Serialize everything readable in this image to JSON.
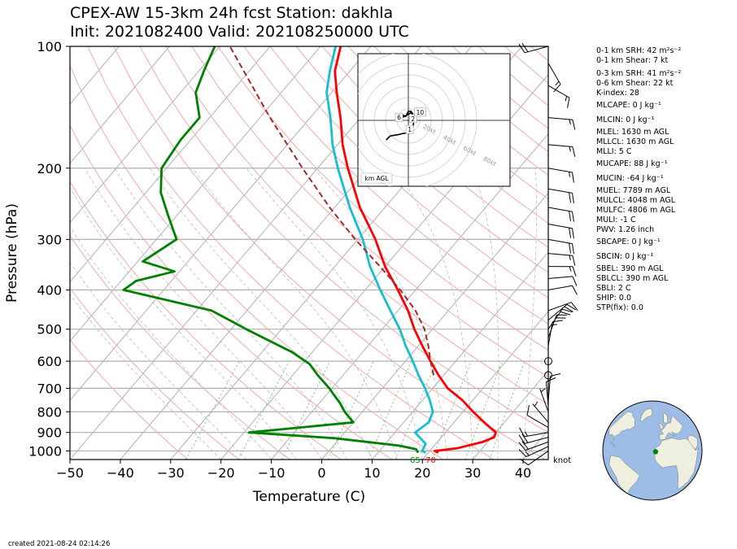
{
  "header": {
    "title_line1": "CPEX-AW 15-3km  24h fcst  Station: dakhla",
    "title_line2": "Init: 2021082400  Valid: 202108250000 UTC"
  },
  "footer": {
    "created": "created 2021-08-24 02:14:26"
  },
  "indices": [
    {
      "text": "0-1 km SRH: 42 m²s⁻²",
      "gap": 0
    },
    {
      "text": "0-1 km Shear: 7 kt",
      "gap": 0
    },
    {
      "text": "0-3 km SRH: 41 m²s⁻²",
      "gap": 4
    },
    {
      "text": "0-6 km Shear: 22 kt",
      "gap": 0
    },
    {
      "text": "K-index: 28",
      "gap": 0
    },
    {
      "text": "MLCAPE: 0 J kg⁻¹",
      "gap": 3
    },
    {
      "text": "MLCIN: 0 J kg⁻¹",
      "gap": 6
    },
    {
      "text": "MLEL: 1630 m AGL",
      "gap": 3
    },
    {
      "text": "MLLCL: 1630 m AGL",
      "gap": 0
    },
    {
      "text": "MLLI: 5 C",
      "gap": 0
    },
    {
      "text": "MUCAPE: 88 J kg⁻¹",
      "gap": 3
    },
    {
      "text": "MUCIN: -64 J kg⁻¹",
      "gap": 6
    },
    {
      "text": "MUEL: 7789 m AGL",
      "gap": 3
    },
    {
      "text": "MULCL: 4048 m AGL",
      "gap": 0
    },
    {
      "text": "MULFC: 4806 m AGL",
      "gap": 0
    },
    {
      "text": "MULI: -1 C",
      "gap": 0
    },
    {
      "text": "PWV: 1.26 inch",
      "gap": 0
    },
    {
      "text": "SBCAPE: 0 J kg⁻¹",
      "gap": 3
    },
    {
      "text": "SBCIN: 0 J kg⁻¹",
      "gap": 6
    },
    {
      "text": "SBEL: 390 m AGL",
      "gap": 3
    },
    {
      "text": "SBLCL: 390 m AGL",
      "gap": 0
    },
    {
      "text": "SBLI: 2 C",
      "gap": 0
    },
    {
      "text": "SHIP: 0.0",
      "gap": 0
    },
    {
      "text": "STP(fix): 0.0",
      "gap": 0
    }
  ],
  "colors": {
    "temperature": "#ff0000",
    "dewpoint": "#008000",
    "wetbulb": "#17becf",
    "parcel": "#a52a2a",
    "dry_adiabat": "#f4a9a9",
    "moist_adiabat": "#bbbbbb",
    "mixing_ratio": "#7fbf7f",
    "isobar": "#b0b0b0",
    "ocean": "#9dbde6",
    "land": "#efefdf",
    "station_marker": "#008000"
  },
  "chart_data": [
    {
      "type": "line",
      "subtype": "skew-t",
      "xlabel": "Temperature (C)",
      "ylabel": "Pressure (hPa)",
      "xlim": [
        -50,
        45
      ],
      "ylim": [
        1050,
        100
      ],
      "y_scale": "log",
      "x_ticks": [
        -50,
        -40,
        -30,
        -20,
        -10,
        0,
        10,
        20,
        30,
        40
      ],
      "y_ticks": [
        100,
        200,
        300,
        400,
        500,
        600,
        700,
        800,
        900,
        1000
      ],
      "grid": true,
      "surface_labels": {
        "dewpoint": "65",
        "temperature": "70"
      },
      "wind_unit_label": "knot",
      "series": [
        {
          "key": "temperature",
          "points": [
            [
              1010,
              22
            ],
            [
              1000,
              21
            ],
            [
              985,
              25
            ],
            [
              950,
              29
            ],
            [
              925,
              30.5
            ],
            [
              900,
              30
            ],
            [
              850,
              26
            ],
            [
              800,
              22
            ],
            [
              750,
              18
            ],
            [
              700,
              13
            ],
            [
              650,
              9
            ],
            [
              600,
              5
            ],
            [
              550,
              0.8
            ],
            [
              500,
              -3.6
            ],
            [
              450,
              -8
            ],
            [
              400,
              -13.5
            ],
            [
              350,
              -20
            ],
            [
              300,
              -26.5
            ],
            [
              250,
              -35
            ],
            [
              200,
              -44
            ],
            [
              175,
              -49
            ],
            [
              150,
              -54
            ],
            [
              130,
              -59
            ],
            [
              115,
              -63
            ],
            [
              100,
              -66
            ]
          ]
        },
        {
          "key": "wetbulb",
          "points": [
            [
              1010,
              19.5
            ],
            [
              1000,
              18.5
            ],
            [
              960,
              18
            ],
            [
              930,
              16
            ],
            [
              900,
              14
            ],
            [
              850,
              15
            ],
            [
              800,
              14
            ],
            [
              750,
              11.5
            ],
            [
              700,
              8.5
            ],
            [
              650,
              5
            ],
            [
              600,
              1.5
            ],
            [
              550,
              -2.5
            ],
            [
              500,
              -6.5
            ],
            [
              450,
              -11.5
            ],
            [
              400,
              -17
            ],
            [
              350,
              -23
            ],
            [
              300,
              -29
            ],
            [
              250,
              -37
            ],
            [
              200,
              -46
            ],
            [
              175,
              -51
            ],
            [
              150,
              -56
            ],
            [
              130,
              -61
            ],
            [
              115,
              -64
            ],
            [
              100,
              -67
            ]
          ]
        },
        {
          "key": "dewpoint",
          "points": [
            [
              1010,
              18
            ],
            [
              990,
              17
            ],
            [
              970,
              13
            ],
            [
              930,
              -1
            ],
            [
              900,
              -19
            ],
            [
              850,
              0
            ],
            [
              800,
              -3.5
            ],
            [
              760,
              -6
            ],
            [
              720,
              -9
            ],
            [
              700,
              -10.5
            ],
            [
              650,
              -15
            ],
            [
              610,
              -18.5
            ],
            [
              570,
              -24
            ],
            [
              500,
              -37
            ],
            [
              450,
              -47
            ],
            [
              400,
              -68
            ],
            [
              380,
              -67
            ],
            [
              360,
              -61
            ],
            [
              340,
              -69
            ],
            [
              300,
              -66
            ],
            [
              260,
              -72
            ],
            [
              230,
              -77
            ],
            [
              200,
              -81
            ],
            [
              170,
              -82
            ],
            [
              150,
              -82
            ],
            [
              130,
              -87
            ],
            [
              115,
              -89
            ],
            [
              100,
              -91
            ]
          ]
        },
        {
          "key": "parcel",
          "dashed": true,
          "points": [
            [
              650,
              8
            ],
            [
              600,
              5
            ],
            [
              550,
              2
            ],
            [
              500,
              -1.6
            ],
            [
              450,
              -6.5
            ],
            [
              400,
              -13
            ],
            [
              350,
              -21
            ],
            [
              300,
              -30.5
            ],
            [
              250,
              -41
            ],
            [
              200,
              -53
            ],
            [
              150,
              -68
            ],
            [
              100,
              -88
            ]
          ]
        }
      ],
      "wind_barbs": [
        {
          "p": 1000,
          "spd": 10,
          "dir": 235
        },
        {
          "p": 975,
          "spd": 15,
          "dir": 245
        },
        {
          "p": 950,
          "spd": 20,
          "dir": 250
        },
        {
          "p": 925,
          "spd": 20,
          "dir": 255
        },
        {
          "p": 900,
          "spd": 15,
          "dir": 260
        },
        {
          "p": 875,
          "spd": 10,
          "dir": 300
        },
        {
          "p": 850,
          "spd": 5,
          "dir": 320
        },
        {
          "p": 800,
          "spd": 5,
          "dir": 340
        },
        {
          "p": 775,
          "spd": 10,
          "dir": 355
        },
        {
          "p": 750,
          "spd": 10,
          "dir": 5
        },
        {
          "p": 650,
          "spd": 0,
          "dir": 0
        },
        {
          "p": 600,
          "spd": 0,
          "dir": 0
        },
        {
          "p": 550,
          "spd": 15,
          "dir": 10
        },
        {
          "p": 525,
          "spd": 20,
          "dir": 20
        },
        {
          "p": 500,
          "spd": 20,
          "dir": 35
        },
        {
          "p": 475,
          "spd": 20,
          "dir": 50
        },
        {
          "p": 450,
          "spd": 10,
          "dir": 70
        },
        {
          "p": 400,
          "spd": 10,
          "dir": 80
        },
        {
          "p": 375,
          "spd": 10,
          "dir": 85
        },
        {
          "p": 350,
          "spd": 15,
          "dir": 90
        },
        {
          "p": 325,
          "spd": 15,
          "dir": 95
        },
        {
          "p": 300,
          "spd": 20,
          "dir": 100
        },
        {
          "p": 275,
          "spd": 20,
          "dir": 100
        },
        {
          "p": 250,
          "spd": 20,
          "dir": 100
        },
        {
          "p": 225,
          "spd": 20,
          "dir": 100
        },
        {
          "p": 200,
          "spd": 15,
          "dir": 100
        },
        {
          "p": 175,
          "spd": 15,
          "dir": 95
        },
        {
          "p": 150,
          "spd": 15,
          "dir": 95
        },
        {
          "p": 125,
          "spd": 15,
          "dir": 120
        },
        {
          "p": 110,
          "spd": 15,
          "dir": 150
        },
        {
          "p": 100,
          "spd": 20,
          "dir": 255
        }
      ]
    },
    {
      "type": "line",
      "subtype": "hodograph",
      "unit_label": "km AGL",
      "ring_labels": [
        "20kt",
        "40kt",
        "60kt",
        "80kt"
      ],
      "height_labels": [
        "1",
        "2",
        "6",
        "10"
      ],
      "points": [
        [
          -8.5,
          -7.5
        ],
        [
          -7,
          -6
        ],
        [
          -4,
          -5.5
        ],
        [
          -2,
          -5
        ],
        [
          0.5,
          -4.8
        ],
        [
          1.5,
          -4
        ],
        [
          2,
          -1
        ],
        [
          1.5,
          2.5
        ],
        [
          1,
          3
        ],
        [
          -1.5,
          1.5
        ],
        [
          -3,
          1
        ],
        [
          -4.5,
          1.5
        ],
        [
          -3,
          2.5
        ],
        [
          -1,
          1.5
        ],
        [
          -0.5,
          2.5
        ],
        [
          0,
          3.5
        ],
        [
          1,
          3.5
        ],
        [
          2,
          2
        ]
      ],
      "label_points": [
        {
          "label": "1",
          "u": 0.5,
          "v": -3.5
        },
        {
          "label": "2",
          "u": 1.8,
          "v": 0.7
        },
        {
          "label": "6",
          "u": -3.6,
          "v": 1.2
        },
        {
          "label": "10",
          "u": 4.5,
          "v": 3.2
        }
      ]
    }
  ],
  "globe": {
    "center_lon": -20,
    "center_lat": 25,
    "station_lon": -16,
    "station_lat": 23.7
  }
}
